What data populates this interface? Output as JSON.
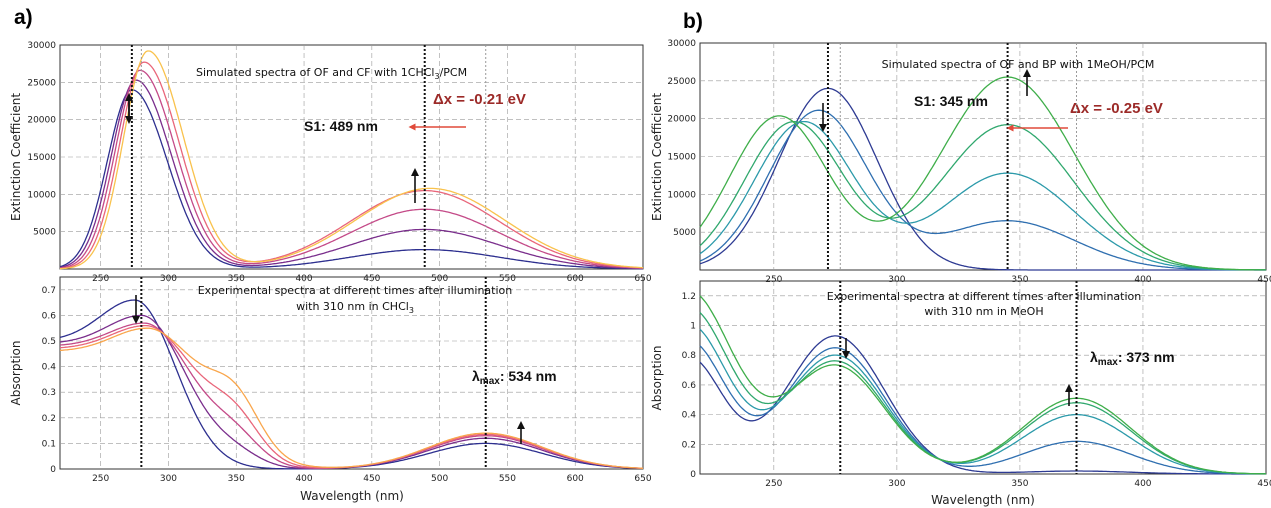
{
  "chart_data": [
    {
      "type": "line",
      "panel": "a)",
      "title": "Simulated spectra of OF and CF with 1CHCl3/PCM",
      "ylabel": "Extinction Coefficient",
      "xlim": [
        220,
        650
      ],
      "ylim": [
        0,
        30000
      ],
      "x_ticks": [
        250,
        300,
        350,
        400,
        450,
        500,
        550,
        600,
        650
      ],
      "y_ticks": [
        5000,
        10000,
        15000,
        20000,
        25000,
        30000
      ],
      "annotations": {
        "state": "S1: 489 nm",
        "shift": "Δx = -0.21 eV"
      },
      "series": [
        {
          "color": "#2d2f8f",
          "peak1": [
            273,
            24000
          ],
          "peak2": [
            489,
            2600
          ]
        },
        {
          "color": "#7a2e8c",
          "peak1": [
            276,
            25300
          ],
          "peak2": [
            489,
            5300
          ]
        },
        {
          "color": "#c44a88",
          "peak1": [
            279,
            26600
          ],
          "peak2": [
            489,
            8000
          ]
        },
        {
          "color": "#e9667a",
          "peak1": [
            282,
            27700
          ],
          "peak2": [
            489,
            10500
          ]
        },
        {
          "color": "#f9c24c",
          "peak1": [
            285,
            29200
          ],
          "peak2": [
            493,
            10800
          ]
        }
      ]
    },
    {
      "type": "line",
      "panel": "a)",
      "title": "Experimental spectra at different times after illumination",
      "title2": "with 310 nm in CHCl3",
      "ylabel": "Absorption",
      "xlabel": "Wavelength  (nm)",
      "xlim": [
        220,
        650
      ],
      "ylim": [
        0,
        0.75
      ],
      "x_ticks": [
        250,
        300,
        350,
        400,
        450,
        500,
        550,
        600,
        650
      ],
      "y_ticks": [
        0,
        0.1,
        0.2,
        0.3,
        0.4,
        0.5,
        0.6,
        0.7
      ],
      "annotations": {
        "lambda": "λmax: 534 nm"
      },
      "series": [
        {
          "color": "#2d2f8f",
          "peak": [
            275,
            0.66
          ],
          "peak2": [
            534,
            0.1
          ]
        },
        {
          "color": "#7a2e8c",
          "peak": [
            280,
            0.6
          ],
          "peak2": [
            534,
            0.12
          ]
        },
        {
          "color": "#c44a88",
          "peak": [
            282,
            0.57
          ],
          "peak2": [
            534,
            0.13
          ]
        },
        {
          "color": "#e9667a",
          "peak": [
            283,
            0.56
          ],
          "peak2": [
            534,
            0.135
          ]
        },
        {
          "color": "#f9a64c",
          "peak": [
            284,
            0.55
          ],
          "peak2": [
            534,
            0.14
          ]
        }
      ]
    },
    {
      "type": "line",
      "panel": "b)",
      "title": "Simulated spectra of OF and BP with 1MeOH/PCM",
      "ylabel": "Extinction Coefficient",
      "xlim": [
        220,
        450
      ],
      "ylim": [
        0,
        30000
      ],
      "x_ticks": [
        250,
        300,
        350,
        400,
        450
      ],
      "y_ticks": [
        5000,
        10000,
        15000,
        20000,
        25000,
        30000
      ],
      "annotations": {
        "state": "S1: 345 nm",
        "shift": "Δx = -0.25 eV"
      },
      "series": [
        {
          "color": "#2e3b93",
          "peak1": [
            272,
            24000
          ],
          "peak2": [
            345,
            0
          ]
        },
        {
          "color": "#2f6fb0",
          "peak1": [
            268,
            21000
          ],
          "peak2": [
            345,
            6500
          ]
        },
        {
          "color": "#2c9aaa",
          "peak1": [
            262,
            19500
          ],
          "peak2": [
            345,
            12800
          ]
        },
        {
          "color": "#30a86e",
          "peak1": [
            258,
            19500
          ],
          "peak2": [
            345,
            19200
          ]
        },
        {
          "color": "#3fae4a",
          "peak1": [
            252,
            20300
          ],
          "peak2": [
            345,
            25500
          ]
        }
      ]
    },
    {
      "type": "line",
      "panel": "b)",
      "title": "Experimental spectra at different times after illumination",
      "title2": "with 310 nm in MeOH",
      "ylabel": "Absorption",
      "xlabel": "Wavelength  (nm)",
      "xlim": [
        220,
        450
      ],
      "ylim": [
        0,
        1.3
      ],
      "x_ticks": [
        250,
        300,
        350,
        400,
        450
      ],
      "y_ticks": [
        0,
        0.2,
        0.4,
        0.6,
        0.8,
        1,
        1.2
      ],
      "annotations": {
        "lambda": "λmax: 373 nm"
      },
      "series": [
        {
          "color": "#2e3b93",
          "peak": [
            275,
            0.93
          ],
          "peak2": [
            373,
            0.02
          ]
        },
        {
          "color": "#2f6fb0",
          "peak": [
            275,
            0.85
          ],
          "peak2": [
            373,
            0.22
          ]
        },
        {
          "color": "#2c9aaa",
          "peak": [
            275,
            0.8
          ],
          "peak2": [
            373,
            0.4
          ]
        },
        {
          "color": "#30a86e",
          "peak": [
            275,
            0.76
          ],
          "peak2": [
            373,
            0.48
          ]
        },
        {
          "color": "#3fae4a",
          "peak": [
            275,
            0.73
          ],
          "peak2": [
            373,
            0.51
          ]
        }
      ]
    }
  ],
  "labels": {
    "panel_a": "a)",
    "panel_b": "b)",
    "a_sim_title": "Simulated spectra of OF and CF with 1CHCl",
    "a_sim_title_sub": "3",
    "a_sim_title_end": "/PCM",
    "a_exp_title1": "Experimental spectra at different times after illumination",
    "a_exp_title2": "with 310 nm in CHCl",
    "a_exp_title2_sub": "3",
    "b_sim_title": "Simulated spectra of OF and BP with 1MeOH/PCM",
    "b_exp_title1": "Experimental spectra at different times after illumination",
    "b_exp_title2": "with 310 nm in MeOH",
    "ylabel_top": "Extinction Coefficient",
    "ylabel_bottom": "Absorption",
    "xlabel": "Wavelength  (nm)",
    "a_s1": "S1: 489 nm",
    "a_dx": "Δx = -0.21 eV",
    "a_lambda_main": "λ",
    "a_lambda_sub": "max",
    "a_lambda_val": ": 534 nm",
    "b_s1": "S1: 345 nm",
    "b_dx": "Δx = -0.25 eV",
    "b_lambda_main": "λ",
    "b_lambda_sub": "max",
    "b_lambda_val": ": 373 nm"
  },
  "colors": {
    "arrow_red": "#e04a3a",
    "text_red": "#9c2a28"
  }
}
